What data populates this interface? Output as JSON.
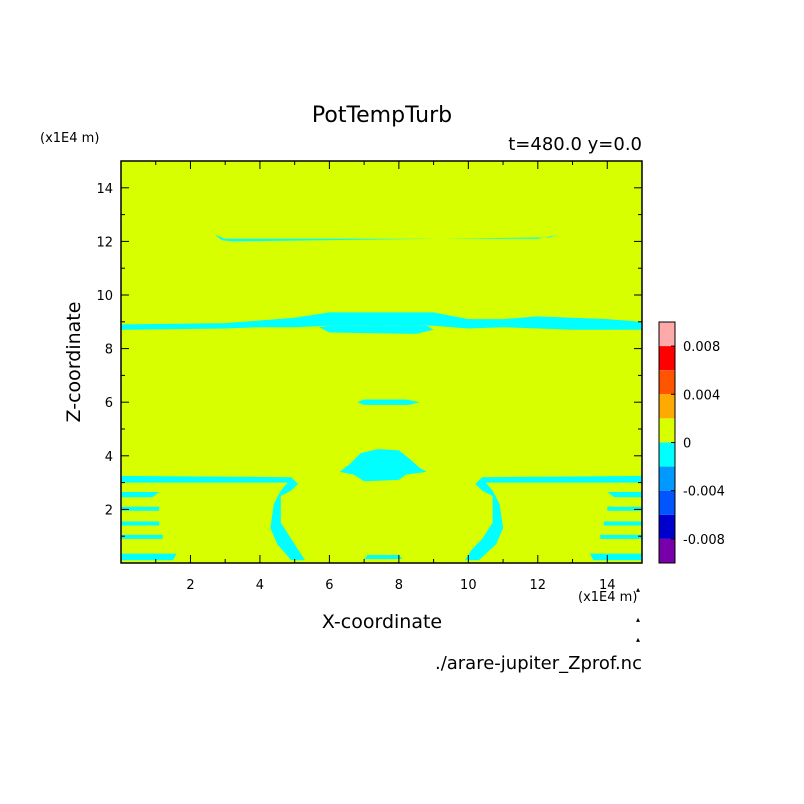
{
  "chart_data": {
    "type": "heatmap",
    "title": "PotTempTurb",
    "time_label": "t=480.0 y=0.0",
    "xlabel": "X-coordinate",
    "ylabel": "Z-coordinate",
    "x_unit": "(x1E4 m)",
    "y_unit": "(x1E4 m)",
    "source": "./arare-jupiter_Zprof.nc",
    "xlim": [
      0,
      15
    ],
    "ylim": [
      0,
      15
    ],
    "x_ticks": [
      "2",
      "4",
      "6",
      "8",
      "10",
      "12",
      "14"
    ],
    "y_ticks": [
      "2",
      "4",
      "6",
      "8",
      "10",
      "12",
      "14"
    ],
    "background_level": {
      "range": [
        0,
        0.002
      ],
      "color": "#d7ff00"
    },
    "colorbar": {
      "levels": [
        {
          "from": 0.008,
          "to": 0.01,
          "color": "#ffaaaa"
        },
        {
          "from": 0.006,
          "to": 0.008,
          "color": "#ff0000"
        },
        {
          "from": 0.004,
          "to": 0.006,
          "color": "#ff5500"
        },
        {
          "from": 0.002,
          "to": 0.004,
          "color": "#ffaa00"
        },
        {
          "from": 0.0,
          "to": 0.002,
          "color": "#d7ff00"
        },
        {
          "from": -0.002,
          "to": 0.0,
          "color": "#00ffff"
        },
        {
          "from": -0.004,
          "to": -0.002,
          "color": "#0099ff"
        },
        {
          "from": -0.006,
          "to": -0.004,
          "color": "#0055ff"
        },
        {
          "from": -0.008,
          "to": -0.006,
          "color": "#0000cc"
        },
        {
          "from": -0.01,
          "to": -0.008,
          "color": "#7700aa"
        }
      ],
      "tick_labels": [
        {
          "value": 0.008,
          "label": "0.008"
        },
        {
          "value": 0.004,
          "label": "0.004"
        },
        {
          "value": 0.0,
          "label": "0"
        },
        {
          "value": -0.004,
          "label": "-0.004"
        },
        {
          "value": -0.008,
          "label": "-0.008"
        }
      ]
    },
    "negative_regions": [
      {
        "name": "upper-thin-band",
        "color": "#00ffff",
        "points": [
          [
            2.7,
            12.25
          ],
          [
            3.0,
            12.1
          ],
          [
            12.0,
            12.1
          ],
          [
            12.6,
            12.25
          ],
          [
            12.35,
            12.15
          ],
          [
            3.2,
            12.0
          ],
          [
            2.9,
            12.05
          ]
        ]
      },
      {
        "name": "band-9km",
        "color": "#00ffff",
        "points": [
          [
            0,
            8.9
          ],
          [
            3,
            8.95
          ],
          [
            4,
            9.05
          ],
          [
            5,
            9.15
          ],
          [
            6,
            9.35
          ],
          [
            9,
            9.35
          ],
          [
            10,
            9.1
          ],
          [
            11,
            9.1
          ],
          [
            12,
            9.2
          ],
          [
            14,
            9.1
          ],
          [
            15,
            9.0
          ],
          [
            15,
            8.7
          ],
          [
            13,
            8.7
          ],
          [
            11,
            8.8
          ],
          [
            10,
            8.75
          ],
          [
            9,
            8.85
          ],
          [
            6,
            8.85
          ],
          [
            5,
            8.8
          ],
          [
            4,
            8.8
          ],
          [
            3,
            8.75
          ],
          [
            0,
            8.7
          ]
        ]
      },
      {
        "name": "band-8-6km",
        "color": "#00ffff",
        "points": [
          [
            5.7,
            8.8
          ],
          [
            6.0,
            8.6
          ],
          [
            8.5,
            8.55
          ],
          [
            9.0,
            8.7
          ],
          [
            8.8,
            8.85
          ],
          [
            6.0,
            8.85
          ]
        ]
      },
      {
        "name": "blob-6km",
        "color": "#00ffff",
        "points": [
          [
            6.8,
            6.0
          ],
          [
            7.0,
            5.9
          ],
          [
            8.3,
            5.9
          ],
          [
            8.6,
            6.0
          ],
          [
            8.2,
            6.1
          ],
          [
            7.0,
            6.1
          ]
        ]
      },
      {
        "name": "bubble-3-5km",
        "color": "#00ffff",
        "points": [
          [
            6.3,
            3.4
          ],
          [
            6.6,
            3.7
          ],
          [
            6.9,
            4.1
          ],
          [
            7.4,
            4.25
          ],
          [
            8.0,
            4.2
          ],
          [
            8.3,
            3.9
          ],
          [
            8.6,
            3.55
          ],
          [
            8.8,
            3.4
          ],
          [
            8.2,
            3.3
          ],
          [
            8.0,
            3.1
          ],
          [
            7.0,
            3.05
          ],
          [
            6.7,
            3.3
          ]
        ]
      },
      {
        "name": "lower-left-band",
        "color": "#00ffff",
        "points": [
          [
            0,
            3.25
          ],
          [
            4.9,
            3.2
          ],
          [
            5.1,
            2.95
          ],
          [
            4.9,
            2.7
          ],
          [
            4.6,
            2.5
          ],
          [
            4.6,
            1.5
          ],
          [
            4.9,
            0.9
          ],
          [
            5.1,
            0.5
          ],
          [
            5.3,
            0.1
          ],
          [
            4.9,
            0.1
          ],
          [
            4.5,
            0.7
          ],
          [
            4.3,
            1.3
          ],
          [
            4.4,
            2.2
          ],
          [
            4.6,
            2.7
          ],
          [
            4.8,
            3.0
          ],
          [
            0,
            3.0
          ]
        ]
      },
      {
        "name": "lower-right-band",
        "color": "#00ffff",
        "points": [
          [
            15,
            3.25
          ],
          [
            10.4,
            3.2
          ],
          [
            10.2,
            2.95
          ],
          [
            10.4,
            2.7
          ],
          [
            10.7,
            2.5
          ],
          [
            10.7,
            1.5
          ],
          [
            10.4,
            0.9
          ],
          [
            10.1,
            0.5
          ],
          [
            9.9,
            0.1
          ],
          [
            10.3,
            0.1
          ],
          [
            10.8,
            0.7
          ],
          [
            11.0,
            1.3
          ],
          [
            10.9,
            2.2
          ],
          [
            10.7,
            2.7
          ],
          [
            10.5,
            3.0
          ],
          [
            15,
            3.0
          ]
        ]
      },
      {
        "name": "bottom-center",
        "color": "#00ffff",
        "points": [
          [
            7.0,
            0.15
          ],
          [
            7.1,
            0.3
          ],
          [
            8.0,
            0.3
          ],
          [
            8.1,
            0.15
          ]
        ]
      },
      {
        "name": "left-stripes",
        "color": "#00ffff",
        "points": [
          [
            0,
            2.65
          ],
          [
            1.1,
            2.65
          ],
          [
            0.9,
            2.45
          ],
          [
            0,
            2.45
          ]
        ]
      },
      {
        "name": "left-stripes-2",
        "color": "#00ffff",
        "points": [
          [
            0,
            2.1
          ],
          [
            1.1,
            2.1
          ],
          [
            1.1,
            1.95
          ],
          [
            0,
            1.95
          ]
        ]
      },
      {
        "name": "left-stripes-3",
        "color": "#00ffff",
        "points": [
          [
            0,
            1.55
          ],
          [
            1.1,
            1.55
          ],
          [
            1.1,
            1.4
          ],
          [
            0,
            1.4
          ]
        ]
      },
      {
        "name": "left-stripes-4",
        "color": "#00ffff",
        "points": [
          [
            0,
            1.05
          ],
          [
            1.2,
            1.05
          ],
          [
            1.2,
            0.9
          ],
          [
            0,
            0.9
          ]
        ]
      },
      {
        "name": "left-stripes-5",
        "color": "#00ffff",
        "points": [
          [
            0,
            0.35
          ],
          [
            1.6,
            0.35
          ],
          [
            1.5,
            0.1
          ],
          [
            0,
            0.1
          ]
        ]
      },
      {
        "name": "right-stripes",
        "color": "#00ffff",
        "points": [
          [
            15,
            2.65
          ],
          [
            14.0,
            2.65
          ],
          [
            14.2,
            2.45
          ],
          [
            15,
            2.45
          ]
        ]
      },
      {
        "name": "right-stripes-2",
        "color": "#00ffff",
        "points": [
          [
            15,
            2.1
          ],
          [
            14.0,
            2.1
          ],
          [
            14.0,
            1.95
          ],
          [
            15,
            1.95
          ]
        ]
      },
      {
        "name": "right-stripes-3",
        "color": "#00ffff",
        "points": [
          [
            15,
            1.55
          ],
          [
            13.9,
            1.55
          ],
          [
            13.9,
            1.4
          ],
          [
            15,
            1.4
          ]
        ]
      },
      {
        "name": "right-stripes-4",
        "color": "#00ffff",
        "points": [
          [
            15,
            1.05
          ],
          [
            13.8,
            1.05
          ],
          [
            13.8,
            0.9
          ],
          [
            15,
            0.9
          ]
        ]
      },
      {
        "name": "right-stripes-5",
        "color": "#00ffff",
        "points": [
          [
            15,
            0.35
          ],
          [
            13.5,
            0.35
          ],
          [
            13.6,
            0.1
          ],
          [
            15,
            0.1
          ]
        ]
      }
    ]
  }
}
